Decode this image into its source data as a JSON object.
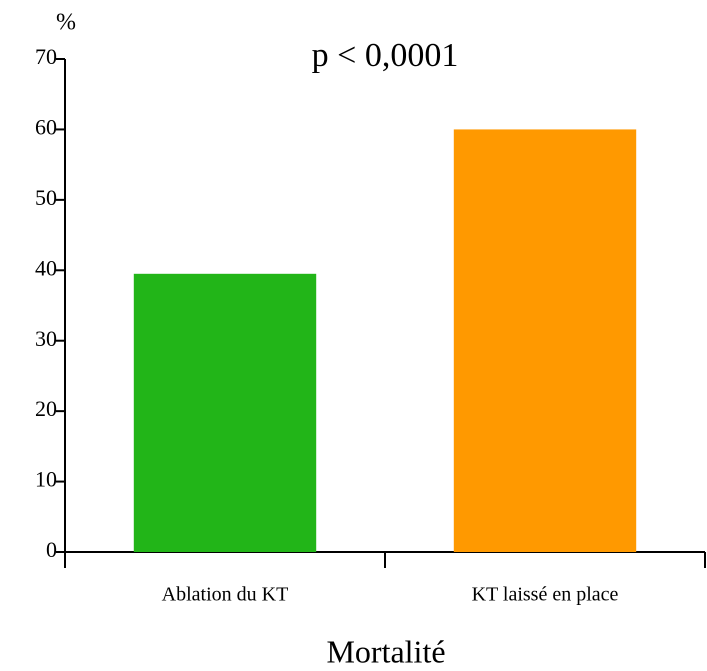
{
  "chart_data": {
    "type": "bar",
    "y_label": "%",
    "annotation": "p < 0,0001",
    "x_label": "Mortalité",
    "categories": [
      "Ablation du KT",
      "KT laissé en place"
    ],
    "values": [
      39.5,
      60
    ],
    "colors": [
      "#22b518",
      "#ff9900"
    ],
    "ylim": [
      0,
      70
    ],
    "yticks": [
      0,
      10,
      20,
      30,
      40,
      50,
      60,
      70
    ],
    "grid": false
  }
}
